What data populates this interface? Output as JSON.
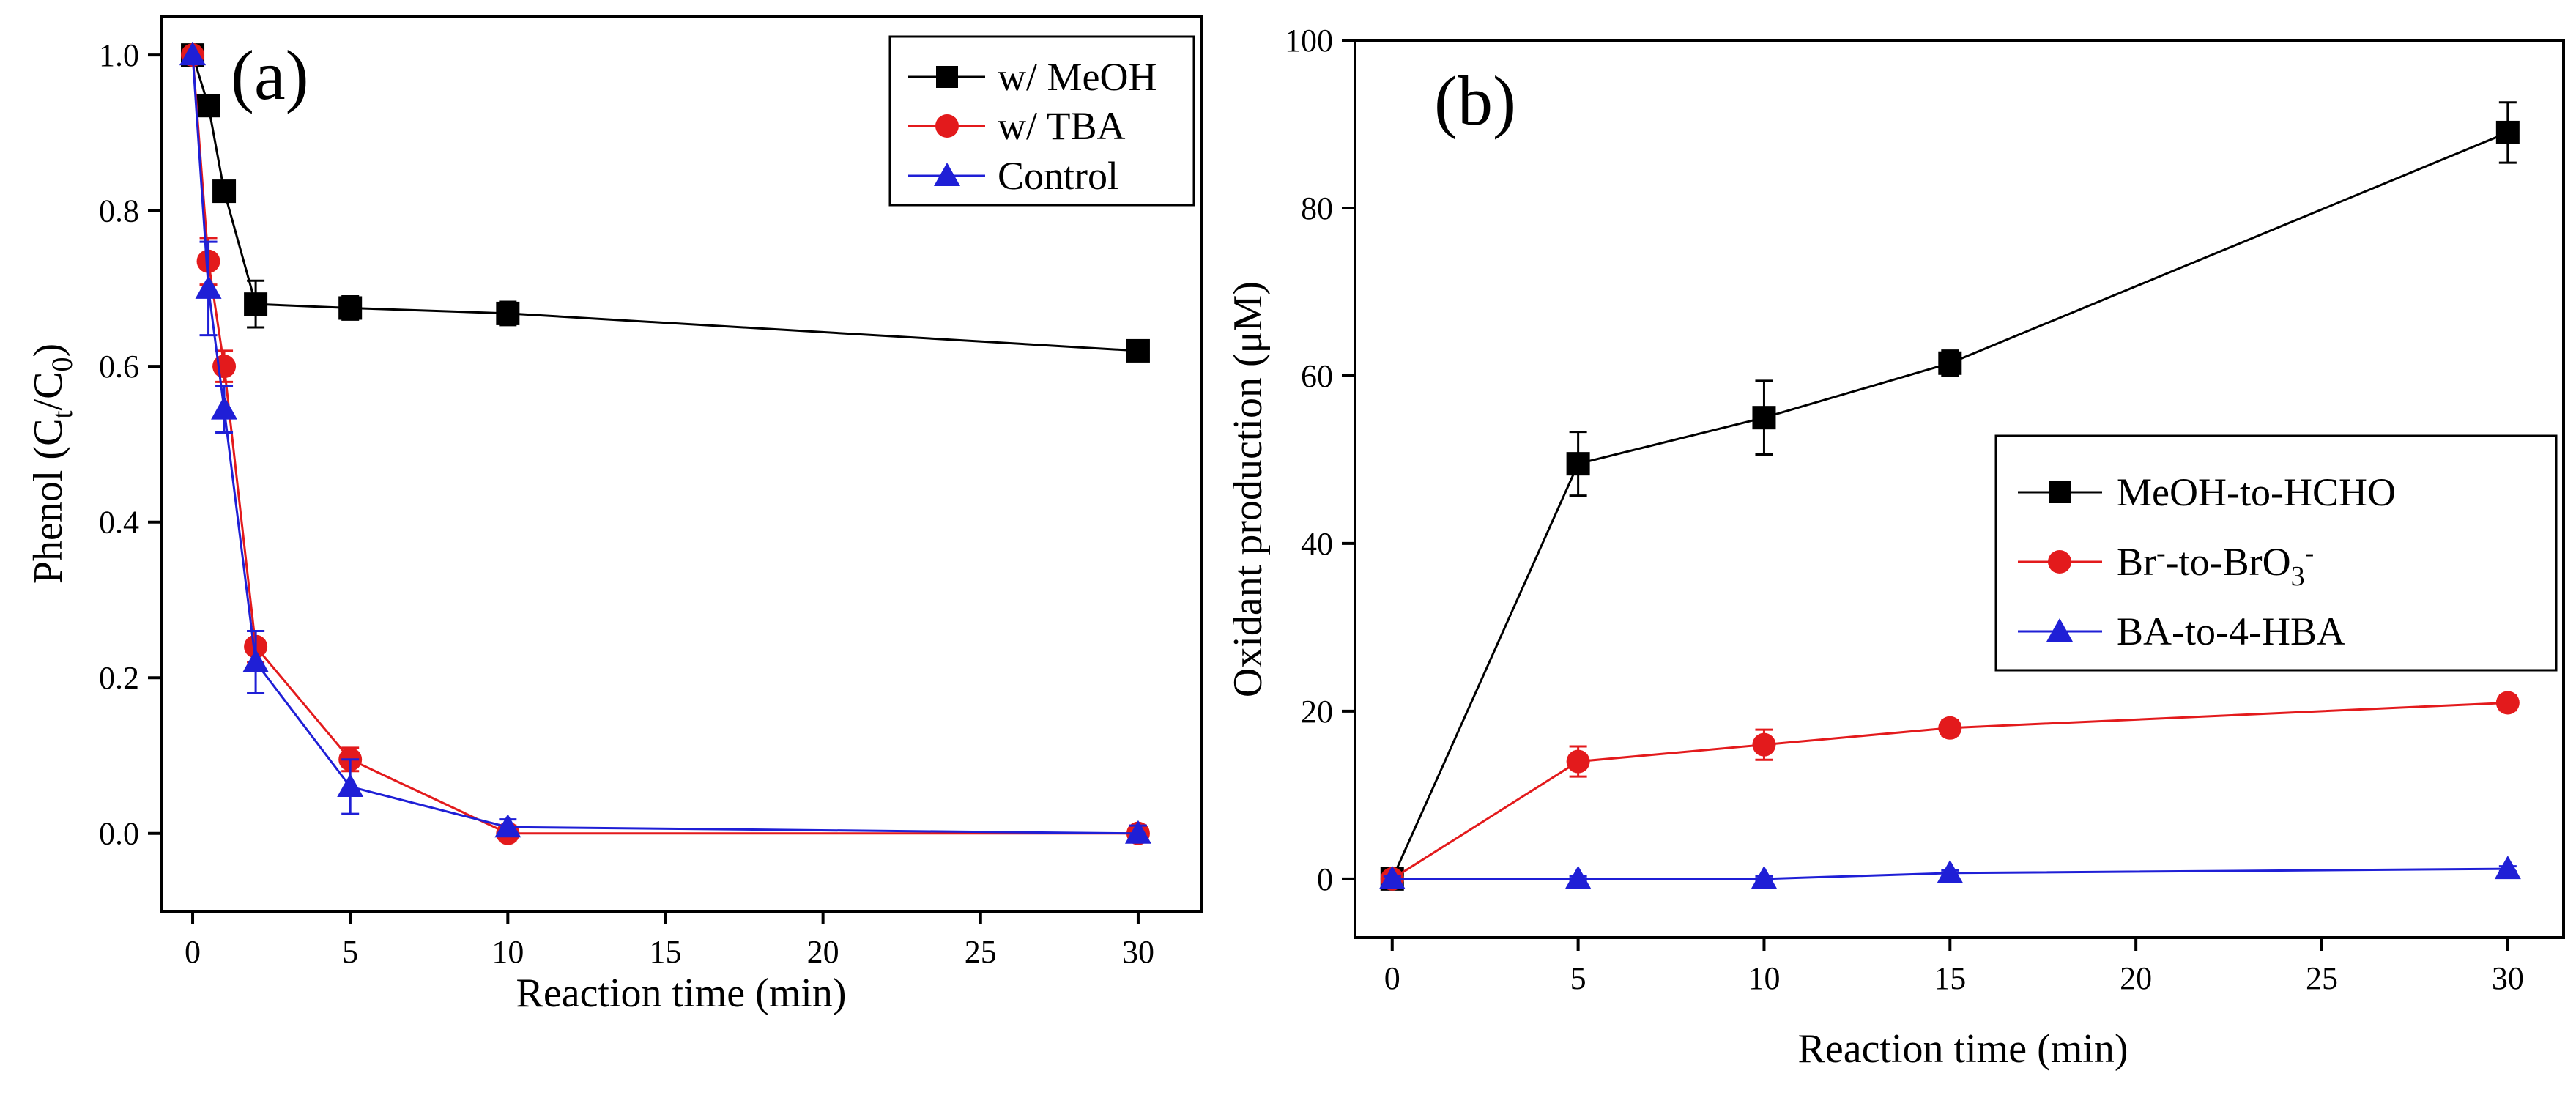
{
  "chart_data": [
    {
      "type": "line",
      "panel_label": "(a)",
      "xlabel": "Reaction time (min)",
      "ylabel": "Phenol (C",
      "ylabel_sub1": "t",
      "ylabel_mid": "/C",
      "ylabel_sub2": "0",
      "ylabel_end": ")",
      "xlim": [
        -1,
        32
      ],
      "ylim": [
        -0.1,
        1.05
      ],
      "xticks": [
        0,
        5,
        10,
        15,
        20,
        25,
        30
      ],
      "yticks": [
        0.0,
        0.2,
        0.4,
        0.6,
        0.8,
        1.0
      ],
      "ytick_labels": [
        "0.0",
        "0.2",
        "0.4",
        "0.6",
        "0.8",
        "1.0"
      ],
      "legend_position": "top-right",
      "series": [
        {
          "name": "w/ MeOH",
          "color": "#000000",
          "marker": "square",
          "x": [
            0,
            0.5,
            1,
            2,
            5,
            10,
            30
          ],
          "y": [
            1.0,
            0.935,
            0.825,
            0.68,
            0.675,
            0.668,
            0.62
          ],
          "err": [
            0,
            0.01,
            0.01,
            0.03,
            0.015,
            0.015,
            0.01
          ]
        },
        {
          "name": "w/ TBA",
          "color": "#e31a1c",
          "marker": "circle",
          "x": [
            0,
            0.5,
            1,
            2,
            5,
            10,
            30
          ],
          "y": [
            1.0,
            0.735,
            0.6,
            0.24,
            0.095,
            0.0,
            0.0
          ],
          "err": [
            0,
            0.03,
            0.02,
            0.02,
            0.015,
            0.01,
            0.01
          ]
        },
        {
          "name": "Control",
          "color": "#1f1fd6",
          "marker": "triangle",
          "x": [
            0,
            0.5,
            1,
            2,
            5,
            10,
            30
          ],
          "y": [
            1.0,
            0.7,
            0.545,
            0.22,
            0.06,
            0.008,
            0.0
          ],
          "err": [
            0,
            0.06,
            0.03,
            0.04,
            0.035,
            0.01,
            0.01
          ]
        }
      ]
    },
    {
      "type": "line",
      "panel_label": "(b)",
      "xlabel": "Reaction time (min)",
      "ylabel": "Oxidant production (μM)",
      "xlim": [
        -1,
        31.5
      ],
      "ylim": [
        -7,
        100
      ],
      "xticks": [
        0,
        5,
        10,
        15,
        20,
        25,
        30
      ],
      "yticks": [
        0,
        20,
        40,
        60,
        80,
        100
      ],
      "ytick_labels": [
        "0",
        "20",
        "40",
        "60",
        "80",
        "100"
      ],
      "legend_position": "center-right",
      "series": [
        {
          "name": "MeOH-to-HCHO",
          "color": "#000000",
          "marker": "square",
          "x": [
            0,
            5,
            10,
            15,
            30
          ],
          "y": [
            0,
            49.5,
            55,
            61.5,
            89
          ],
          "err": [
            0.5,
            3.8,
            4.4,
            1.5,
            3.6
          ]
        },
        {
          "name": "Br-to-BrO3",
          "label_main": "Br",
          "label_sup": "-",
          "label_mid": "-to-BrO",
          "label_sub": "3",
          "label_sup2": "-",
          "color": "#e31a1c",
          "marker": "circle",
          "x": [
            0,
            5,
            10,
            15,
            30
          ],
          "y": [
            0,
            14,
            16,
            18,
            21
          ],
          "err": [
            0.5,
            1.8,
            1.8,
            0.9,
            0.9
          ]
        },
        {
          "name": "BA-to-4-HBA",
          "color": "#1f1fd6",
          "marker": "triangle",
          "x": [
            0,
            5,
            10,
            15,
            30
          ],
          "y": [
            0,
            0,
            0,
            0.7,
            1.2
          ],
          "err": [
            0.3,
            0.3,
            0.3,
            0.3,
            0.3
          ]
        }
      ]
    }
  ]
}
